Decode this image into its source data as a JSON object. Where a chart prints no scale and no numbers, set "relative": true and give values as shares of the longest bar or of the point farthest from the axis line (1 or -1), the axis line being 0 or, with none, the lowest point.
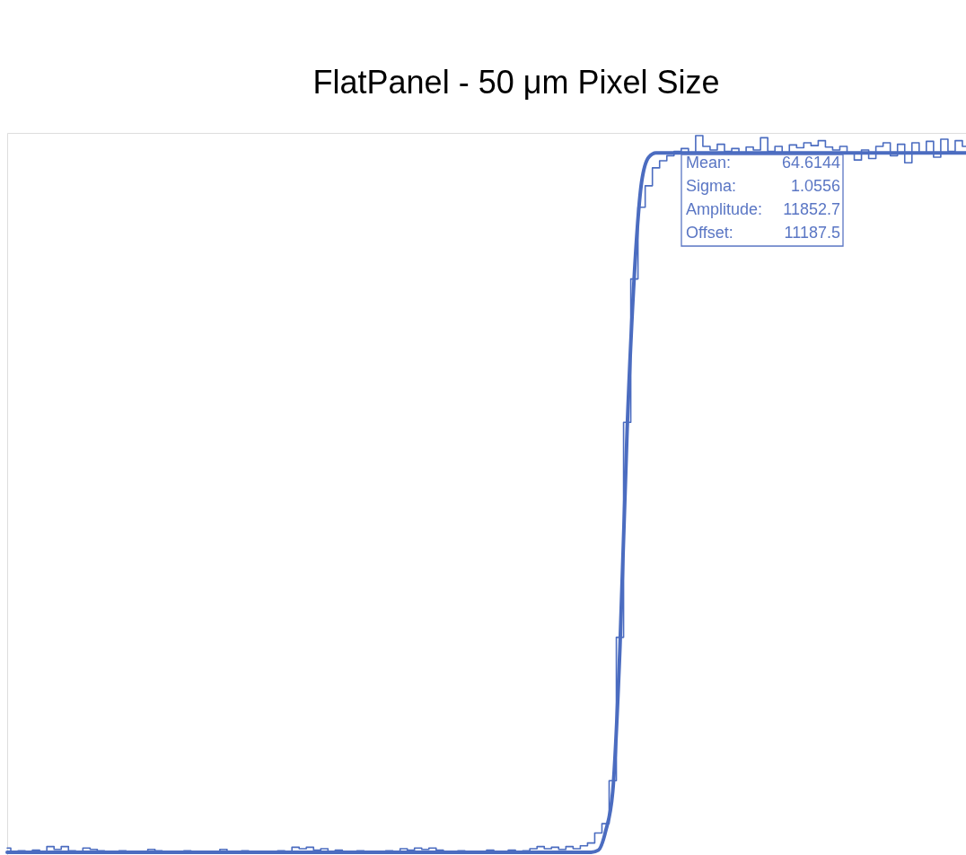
{
  "chart_data": {
    "type": "line",
    "title": "FlatPanel - 50 μm Pixel Size",
    "relative": true,
    "categories": [
      null,
      null,
      null,
      null,
      null,
      null,
      null,
      null,
      null,
      null,
      null,
      null,
      null,
      null,
      null,
      null,
      null,
      null,
      null,
      null,
      null,
      null,
      null,
      null,
      null,
      null,
      null,
      null,
      null,
      null,
      null,
      null,
      null,
      null,
      null,
      null,
      null,
      null,
      null,
      null,
      null,
      null,
      null,
      null,
      null,
      null,
      null,
      null,
      null,
      null,
      null,
      null,
      null,
      null,
      null,
      null,
      null,
      null,
      null,
      null,
      null,
      null,
      null,
      null,
      null,
      null,
      null,
      null,
      null,
      null,
      null,
      null,
      null,
      null,
      null,
      null,
      null,
      null,
      null,
      null,
      null,
      null,
      null,
      null,
      null,
      null,
      null,
      null,
      null,
      null,
      null,
      null,
      null,
      null,
      null,
      null,
      null,
      null,
      null,
      null,
      null,
      null,
      null,
      null,
      null,
      null,
      null,
      null,
      null,
      null,
      null,
      null,
      null,
      null,
      null,
      null,
      null,
      null,
      null,
      null,
      null,
      null,
      null,
      null,
      null,
      null,
      null,
      null,
      null,
      null,
      null,
      null,
      null,
      null
    ],
    "series": [
      {
        "type": "step",
        "color": "#4b6cc0",
        "values": [
          0.006,
          0,
          0.002,
          0,
          0.003,
          0,
          0.008,
          0.004,
          0.008,
          0.002,
          0,
          0.006,
          0.004,
          0.002,
          0,
          0,
          0.002,
          0,
          0,
          0,
          0.004,
          0.002,
          0,
          0,
          0,
          0.002,
          0,
          0,
          0,
          0,
          0.004,
          0,
          0,
          0.002,
          0,
          0,
          0,
          0,
          0.002,
          0,
          0.007,
          0.005,
          0.007,
          0.003,
          0.005,
          0,
          0.003,
          0,
          0,
          0.002,
          0,
          0,
          0,
          0.002,
          0,
          0.005,
          0.003,
          0.006,
          0.004,
          0.006,
          0.003,
          0,
          0,
          0.002,
          0,
          0,
          0,
          0.003,
          0,
          0,
          0.003,
          0,
          0.002,
          0.005,
          0.008,
          0.005,
          0.007,
          0.004,
          0.008,
          0.005,
          0.009,
          0.013,
          0.027,
          0.04,
          0.1,
          0.3,
          0.6,
          0.8,
          0.9,
          0.93,
          0.955,
          0.965,
          0.972,
          0.978,
          0.982,
          0.976,
          1,
          0.985,
          0.98,
          0.988,
          0.978,
          0.982,
          0.976,
          0.984,
          0.98,
          0.997,
          0.978,
          0.985,
          0.976,
          0.987,
          0.983,
          0.99,
          0.986,
          0.993,
          0.984,
          0.98,
          0.985,
          0.976,
          0.966,
          0.98,
          0.968,
          0.985,
          0.99,
          0.972,
          0.988,
          0.962,
          0.99,
          0.975,
          0.992,
          0.97,
          0.995,
          0.978,
          0.993,
          0.985
        ]
      },
      {
        "type": "line",
        "color": "#4b6cc0",
        "values": [
          0,
          0,
          0,
          0,
          0,
          0,
          0,
          0,
          0,
          0,
          0,
          0,
          0,
          0,
          0,
          0,
          0,
          0,
          0,
          0,
          0,
          0,
          0,
          0,
          0,
          0,
          0,
          0,
          0,
          0,
          0,
          0,
          0,
          0,
          0,
          0,
          0,
          0,
          0,
          0,
          0,
          0,
          0,
          0,
          0,
          0,
          0,
          0,
          0,
          0,
          0,
          0,
          0,
          0,
          0,
          0,
          0,
          0,
          0,
          0,
          0,
          0,
          0,
          0,
          0,
          0,
          0,
          0,
          0,
          0,
          0,
          0,
          0,
          0,
          0,
          0,
          0,
          0,
          0,
          0,
          0,
          0,
          0.003,
          0.029,
          0.085,
          0.286,
          0.591,
          0.807,
          0.935,
          0.97,
          0.976,
          0.976,
          0.976,
          0.976,
          0.976,
          0.976,
          0.976,
          0.976,
          0.976,
          0.976,
          0.976,
          0.976,
          0.976,
          0.976,
          0.976,
          0.976,
          0.976,
          0.976,
          0.976,
          0.976,
          0.976,
          0.976,
          0.976,
          0.976,
          0.976,
          0.976,
          0.976,
          0.976,
          0.976,
          0.976,
          0.976,
          0.976,
          0.976,
          0.976,
          0.976,
          0.976,
          0.976,
          0.976,
          0.976,
          0.976,
          0.976,
          0.976,
          0.976,
          0.976
        ]
      }
    ],
    "annotations": [
      "Mean: 64.6144",
      "Sigma: 1.0556",
      "Amplitude: 11852.7",
      "Offset: 11187.5"
    ]
  }
}
